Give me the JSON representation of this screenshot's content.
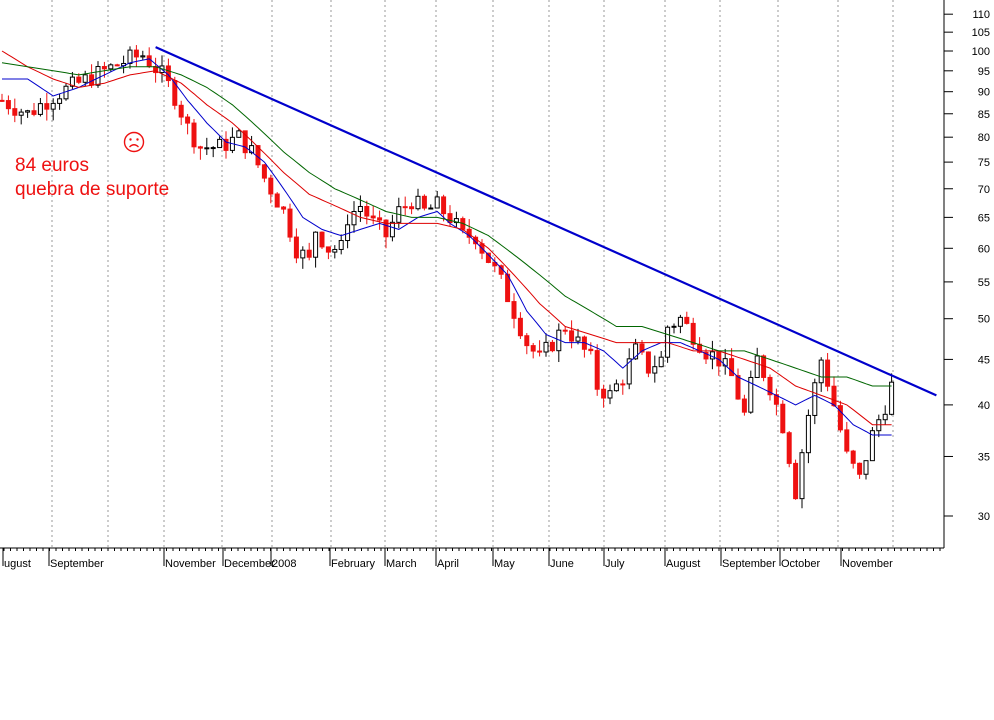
{
  "chart_data": {
    "type": "candlestick",
    "y_scale": "log",
    "y_ticks": [
      110,
      105,
      100,
      95,
      90,
      85,
      80,
      75,
      70,
      65,
      60,
      55,
      50,
      45,
      40,
      35,
      30
    ],
    "y_axis_side": "right",
    "x_tick_labels": [
      "ugust",
      "September",
      "November",
      "December",
      "2008",
      "February",
      "March",
      "April",
      "May",
      "June",
      "July",
      "August",
      "September",
      "October",
      "November"
    ],
    "grid": "vertical-dotted",
    "price_path": [
      [
        0,
        88
      ],
      [
        4,
        85
      ],
      [
        8,
        89
      ],
      [
        12,
        92
      ],
      [
        16,
        95
      ],
      [
        20,
        98
      ],
      [
        22,
        99
      ],
      [
        25,
        94
      ],
      [
        27,
        89
      ],
      [
        29,
        82
      ],
      [
        31,
        78
      ],
      [
        34,
        78
      ],
      [
        37,
        80
      ],
      [
        39,
        77
      ],
      [
        41,
        72
      ],
      [
        44,
        66
      ],
      [
        46,
        60
      ],
      [
        48,
        58
      ],
      [
        49,
        63
      ],
      [
        51,
        60
      ],
      [
        53,
        60
      ],
      [
        54,
        65
      ],
      [
        56,
        67
      ],
      [
        58,
        64
      ],
      [
        60,
        62
      ],
      [
        62,
        66
      ],
      [
        64,
        68
      ],
      [
        66,
        66
      ],
      [
        68,
        67
      ],
      [
        70,
        65
      ],
      [
        72,
        62
      ],
      [
        74,
        62
      ],
      [
        75,
        60
      ],
      [
        78,
        55
      ],
      [
        80,
        51
      ],
      [
        82,
        47
      ],
      [
        84,
        45
      ],
      [
        86,
        47
      ],
      [
        88,
        49
      ],
      [
        90,
        47
      ],
      [
        92,
        45
      ],
      [
        93,
        42
      ],
      [
        95,
        41
      ],
      [
        97,
        43
      ],
      [
        99,
        46
      ],
      [
        101,
        44
      ],
      [
        103,
        45
      ],
      [
        104,
        49
      ],
      [
        106,
        50
      ],
      [
        108,
        48
      ],
      [
        110,
        46
      ],
      [
        112,
        45
      ],
      [
        114,
        43
      ],
      [
        116,
        39
      ],
      [
        118,
        45
      ],
      [
        120,
        42
      ],
      [
        122,
        38
      ],
      [
        124,
        32
      ],
      [
        126,
        39
      ],
      [
        128,
        45
      ],
      [
        130,
        40
      ],
      [
        132,
        35
      ],
      [
        134,
        33
      ],
      [
        136,
        37
      ],
      [
        138,
        40
      ],
      [
        139,
        42
      ],
      [
        140,
        39
      ]
    ],
    "moving_averages": [
      {
        "color": "#0000cc",
        "values": [
          [
            0,
            93
          ],
          [
            4,
            93
          ],
          [
            8,
            89
          ],
          [
            12,
            91
          ],
          [
            16,
            94
          ],
          [
            20,
            97
          ],
          [
            23,
            98
          ],
          [
            26,
            94
          ],
          [
            29,
            88
          ],
          [
            32,
            83
          ],
          [
            35,
            79
          ],
          [
            38,
            78
          ],
          [
            41,
            75
          ],
          [
            44,
            70
          ],
          [
            47,
            65
          ],
          [
            50,
            63
          ],
          [
            53,
            62
          ],
          [
            56,
            63
          ],
          [
            59,
            64
          ],
          [
            62,
            63
          ],
          [
            65,
            65
          ],
          [
            68,
            66
          ],
          [
            70,
            64
          ],
          [
            73,
            62
          ],
          [
            76,
            59
          ],
          [
            79,
            56
          ],
          [
            82,
            51
          ],
          [
            85,
            48
          ],
          [
            88,
            47
          ],
          [
            91,
            47
          ],
          [
            94,
            46
          ],
          [
            97,
            44
          ],
          [
            100,
            46
          ],
          [
            103,
            47
          ],
          [
            106,
            47
          ],
          [
            109,
            46
          ],
          [
            112,
            45
          ],
          [
            115,
            43
          ],
          [
            118,
            42
          ],
          [
            121,
            41
          ],
          [
            124,
            40
          ],
          [
            127,
            41
          ],
          [
            130,
            40
          ],
          [
            133,
            38
          ],
          [
            136,
            37
          ],
          [
            139,
            37
          ]
        ]
      },
      {
        "color": "#dd0000",
        "values": [
          [
            0,
            100
          ],
          [
            4,
            96
          ],
          [
            8,
            93
          ],
          [
            12,
            91
          ],
          [
            16,
            92
          ],
          [
            20,
            94
          ],
          [
            24,
            95
          ],
          [
            28,
            92
          ],
          [
            32,
            87
          ],
          [
            36,
            83
          ],
          [
            40,
            78
          ],
          [
            44,
            73
          ],
          [
            48,
            69
          ],
          [
            52,
            67
          ],
          [
            56,
            65
          ],
          [
            60,
            64
          ],
          [
            64,
            64
          ],
          [
            68,
            64
          ],
          [
            72,
            63
          ],
          [
            76,
            60
          ],
          [
            80,
            56
          ],
          [
            84,
            52
          ],
          [
            88,
            49
          ],
          [
            92,
            48
          ],
          [
            96,
            47
          ],
          [
            100,
            47
          ],
          [
            104,
            47
          ],
          [
            108,
            46
          ],
          [
            112,
            46
          ],
          [
            116,
            45
          ],
          [
            120,
            44
          ],
          [
            124,
            42
          ],
          [
            128,
            41
          ],
          [
            132,
            40
          ],
          [
            136,
            38
          ],
          [
            139,
            38
          ]
        ]
      },
      {
        "color": "#006600",
        "values": [
          [
            0,
            97
          ],
          [
            4,
            96
          ],
          [
            8,
            95
          ],
          [
            12,
            94
          ],
          [
            16,
            95
          ],
          [
            20,
            96
          ],
          [
            24,
            96
          ],
          [
            28,
            94
          ],
          [
            32,
            91
          ],
          [
            36,
            87
          ],
          [
            40,
            82
          ],
          [
            44,
            77
          ],
          [
            48,
            73
          ],
          [
            52,
            70
          ],
          [
            56,
            68
          ],
          [
            60,
            66
          ],
          [
            64,
            65
          ],
          [
            68,
            65
          ],
          [
            72,
            64
          ],
          [
            76,
            62
          ],
          [
            80,
            59
          ],
          [
            84,
            56
          ],
          [
            88,
            53
          ],
          [
            92,
            51
          ],
          [
            96,
            49
          ],
          [
            100,
            49
          ],
          [
            104,
            48
          ],
          [
            108,
            47
          ],
          [
            112,
            46
          ],
          [
            116,
            46
          ],
          [
            120,
            45
          ],
          [
            124,
            44
          ],
          [
            128,
            43
          ],
          [
            132,
            43
          ],
          [
            136,
            42
          ],
          [
            139,
            42
          ]
        ]
      }
    ],
    "trendline": {
      "color": "#0000cc",
      "from": [
        24,
        101
      ],
      "to": [
        146,
        41
      ]
    },
    "annotations": [
      "84 euros",
      "quebra de suporte"
    ]
  }
}
